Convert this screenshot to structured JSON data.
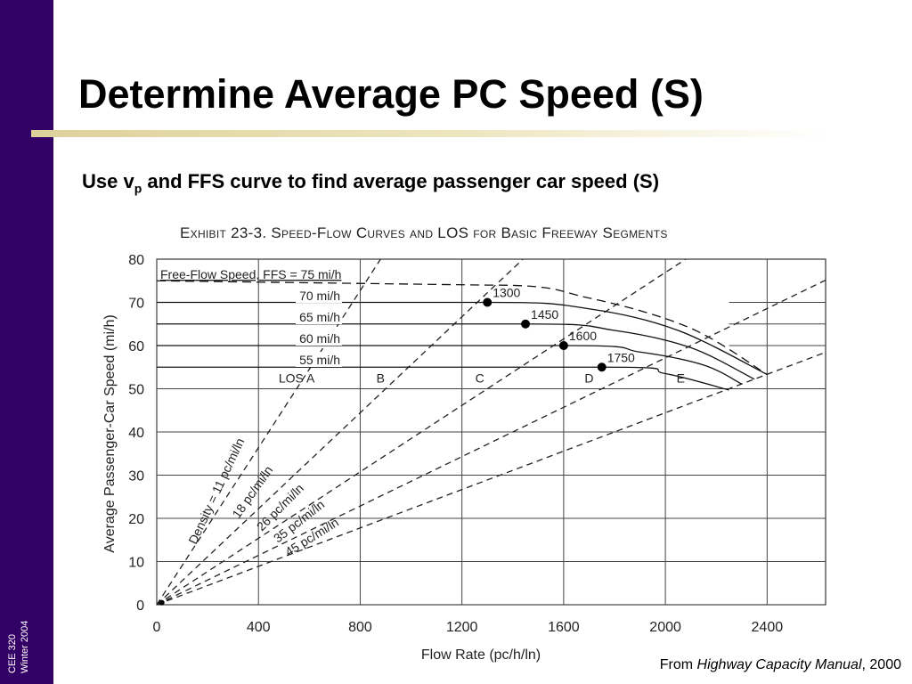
{
  "sidebar": {
    "line1": "CEE 320",
    "line2": "Winter 2004",
    "color": "#330066"
  },
  "title": "Determine Average PC Speed (S)",
  "subtitle": {
    "prefix": "Use v",
    "subscript": "p",
    "suffix": " and FFS curve to find average passenger car speed (S)"
  },
  "credit": {
    "prefix": "From ",
    "italic": "Highway Capacity Manual",
    "suffix": ", 2000"
  },
  "chart_data": {
    "type": "line",
    "title": "Exhibit 23-3.  Speed-Flow Curves and LOS for Basic Freeway Segments",
    "xlabel": "Flow Rate (pc/h/ln)",
    "ylabel": "Average Passenger-Car Speed (mi/h)",
    "xlim": [
      0,
      2630
    ],
    "ylim": [
      0,
      80
    ],
    "x_ticks": [
      0,
      400,
      800,
      1200,
      1600,
      2000,
      2400
    ],
    "y_ticks": [
      0,
      10,
      20,
      30,
      40,
      50,
      60,
      70,
      80
    ],
    "grid": true,
    "ffs_header": "Free-Flow Speed, FFS = 75 mi/h",
    "series": [
      {
        "name": "FFS = 75 mi/h",
        "label": "75 mi/h",
        "style": "dashed",
        "points": [
          [
            0,
            75
          ],
          [
            1300,
            74
          ],
          [
            1700,
            71
          ],
          [
            2100,
            64
          ],
          [
            2400,
            53.3
          ]
        ]
      },
      {
        "name": "70 mi/h",
        "label": "70 mi/h",
        "style": "solid",
        "points": [
          [
            0,
            70
          ],
          [
            1300,
            70
          ],
          [
            1700,
            68.5
          ],
          [
            2050,
            63.5
          ],
          [
            2400,
            53.3
          ]
        ]
      },
      {
        "name": "65 mi/h",
        "label": "65 mi/h",
        "style": "solid",
        "points": [
          [
            0,
            65
          ],
          [
            1450,
            65
          ],
          [
            1800,
            63.5
          ],
          [
            2100,
            59.5
          ],
          [
            2350,
            52.2
          ]
        ]
      },
      {
        "name": "60 mi/h",
        "label": "60 mi/h",
        "style": "solid",
        "points": [
          [
            0,
            60
          ],
          [
            1600,
            60
          ],
          [
            1900,
            58.5
          ],
          [
            2150,
            55.5
          ],
          [
            2300,
            51.1
          ]
        ]
      },
      {
        "name": "55 mi/h",
        "label": "55 mi/h",
        "style": "solid",
        "points": [
          [
            0,
            55
          ],
          [
            1750,
            55
          ],
          [
            2000,
            53.5
          ],
          [
            2250,
            49.7
          ]
        ]
      }
    ],
    "breakpoints": [
      {
        "label": "1300",
        "x": 1300,
        "y": 70
      },
      {
        "label": "1450",
        "x": 1450,
        "y": 65
      },
      {
        "label": "1600",
        "x": 1600,
        "y": 60
      },
      {
        "label": "1750",
        "x": 1750,
        "y": 55
      }
    ],
    "density_lines": [
      {
        "label": "Density = 11 pc/mi/ln",
        "density": 11
      },
      {
        "label": "18 pc/mi/ln",
        "density": 18
      },
      {
        "label": "26 pc/mi/ln",
        "density": 26
      },
      {
        "label": "35 pc/mi/ln",
        "density": 35
      },
      {
        "label": "45 pc/mi/ln",
        "density": 45
      }
    ],
    "los_labels": [
      {
        "label": "LOS A",
        "x": 550,
        "y": 52.3
      },
      {
        "label": "B",
        "x": 880,
        "y": 52.3
      },
      {
        "label": "C",
        "x": 1270,
        "y": 52.3
      },
      {
        "label": "D",
        "x": 1700,
        "y": 52.3
      },
      {
        "label": "E",
        "x": 2060,
        "y": 52.3
      }
    ]
  }
}
